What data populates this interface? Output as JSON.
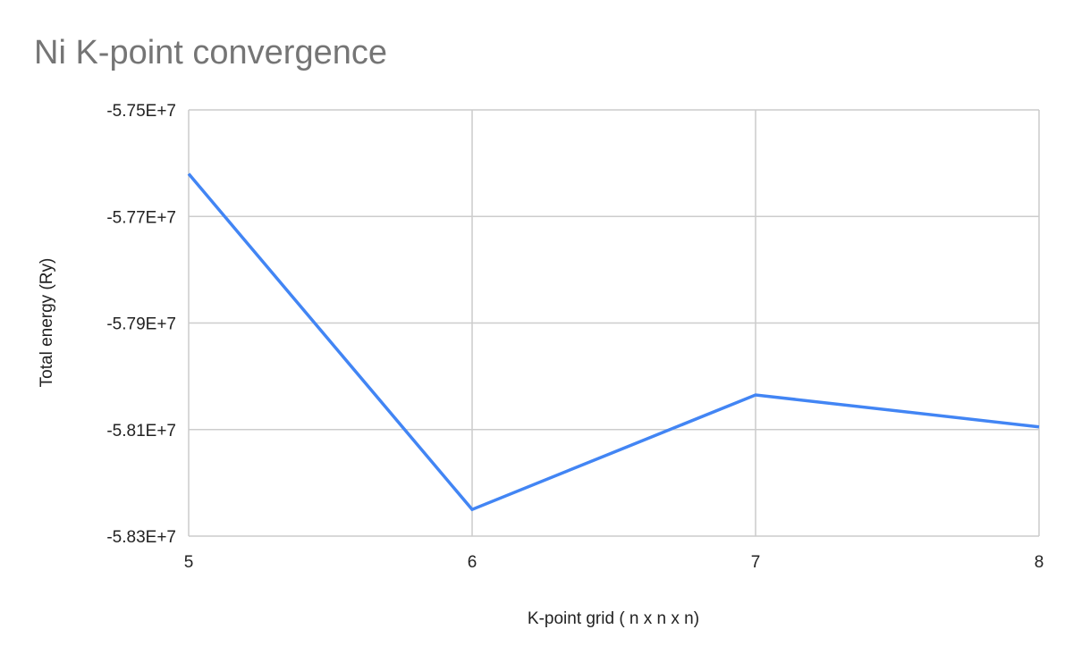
{
  "chart_data": {
    "type": "line",
    "title": "Ni K-point convergence",
    "xlabel": "K-point grid ( n x n x n)",
    "ylabel": "Total energy (Ry)",
    "x": [
      5,
      6,
      7,
      8
    ],
    "x_tick_labels": [
      "5",
      "6",
      "7",
      "8"
    ],
    "y_tick_values": [
      -57500000,
      -57700000,
      -57900000,
      -58100000,
      -58300000
    ],
    "y_tick_labels": [
      "-5.75E+7",
      "-5.77E+7",
      "-5.79E+7",
      "-5.81E+7",
      "-5.83E+7"
    ],
    "xlim": [
      5,
      8
    ],
    "ylim": [
      -58300000,
      -57500000
    ],
    "grid": true,
    "legend": "none",
    "series": [
      {
        "values": [
          -57620000,
          -58250000,
          -58035000,
          -58095000
        ],
        "color": "#4285f4"
      }
    ]
  }
}
